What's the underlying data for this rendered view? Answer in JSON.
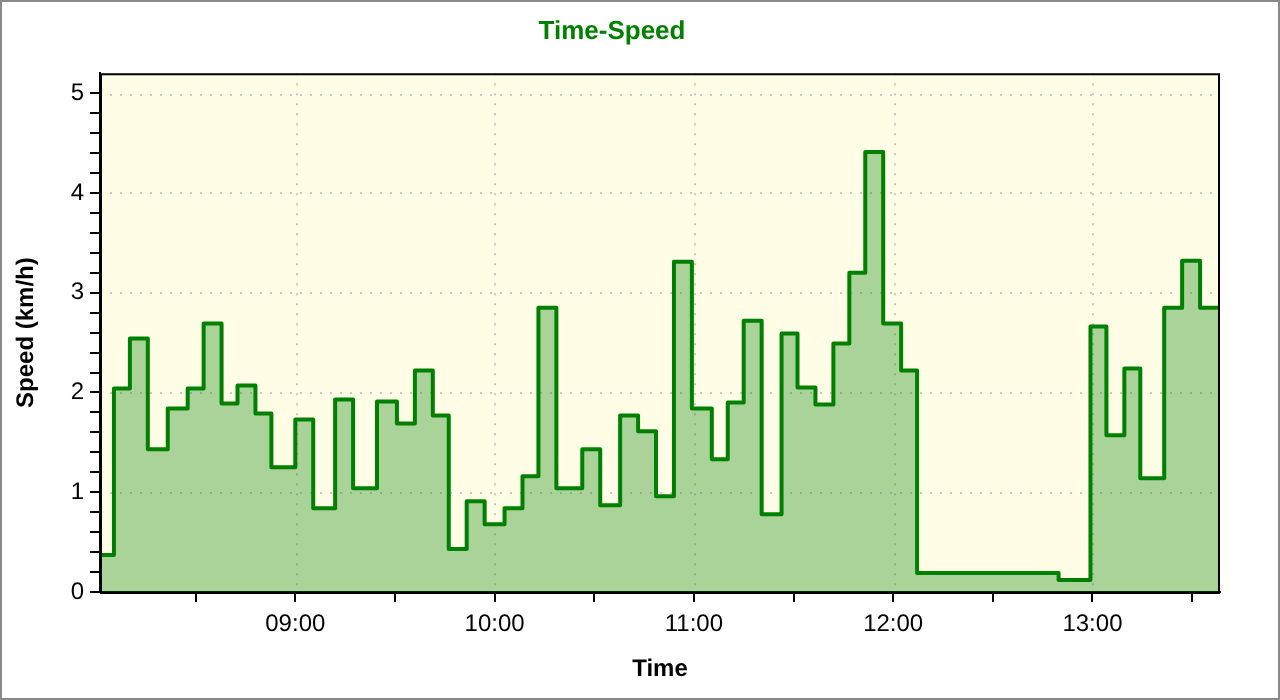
{
  "chart_data": {
    "type": "area",
    "title": "Time-Speed",
    "xlabel": "Time",
    "ylabel": "Speed (km/h)",
    "x": [
      8.02,
      8.09,
      8.09,
      8.17,
      8.17,
      8.26,
      8.26,
      8.36,
      8.36,
      8.46,
      8.46,
      8.54,
      8.54,
      8.63,
      8.63,
      8.71,
      8.71,
      8.8,
      8.8,
      8.88,
      8.88,
      9.0,
      9.0,
      9.09,
      9.09,
      9.2,
      9.2,
      9.29,
      9.29,
      9.41,
      9.41,
      9.51,
      9.51,
      9.6,
      9.6,
      9.69,
      9.69,
      9.77,
      9.77,
      9.86,
      9.86,
      9.95,
      9.95,
      10.05,
      10.05,
      10.14,
      10.14,
      10.22,
      10.22,
      10.31,
      10.31,
      10.44,
      10.44,
      10.53,
      10.53,
      10.63,
      10.63,
      10.72,
      10.72,
      10.81,
      10.81,
      10.9,
      10.9,
      10.99,
      10.99,
      11.09,
      11.09,
      11.17,
      11.17,
      11.25,
      11.25,
      11.34,
      11.34,
      11.44,
      11.44,
      11.52,
      11.52,
      11.61,
      11.61,
      11.7,
      11.7,
      11.78,
      11.78,
      11.86,
      11.86,
      11.95,
      11.95,
      12.04,
      12.04,
      12.12,
      12.12,
      12.83,
      12.83,
      12.99,
      12.99,
      13.07,
      13.07,
      13.16,
      13.16,
      13.24,
      13.24,
      13.36,
      13.36,
      13.45,
      13.45,
      13.54,
      13.54,
      13.64
    ],
    "series": [
      {
        "color": "#008000",
        "values": [
          0.37,
          0.37,
          2.04,
          2.04,
          2.54,
          2.54,
          1.43,
          1.43,
          1.84,
          1.84,
          2.04,
          2.04,
          2.69,
          2.69,
          1.89,
          1.89,
          2.07,
          2.07,
          1.79,
          1.79,
          1.25,
          1.25,
          1.73,
          1.73,
          0.84,
          0.84,
          1.93,
          1.93,
          1.04,
          1.04,
          1.91,
          1.91,
          1.69,
          1.69,
          2.22,
          2.22,
          1.77,
          1.77,
          0.43,
          0.43,
          0.91,
          0.91,
          0.68,
          0.68,
          0.84,
          0.84,
          1.16,
          1.16,
          2.85,
          2.85,
          1.04,
          1.04,
          1.43,
          1.43,
          0.87,
          0.87,
          1.77,
          1.77,
          1.61,
          1.61,
          0.96,
          0.96,
          3.31,
          3.31,
          1.84,
          1.84,
          1.33,
          1.33,
          1.9,
          1.9,
          2.72,
          2.72,
          0.78,
          0.78,
          2.59,
          2.59,
          2.05,
          2.05,
          1.88,
          1.88,
          2.49,
          2.49,
          3.2,
          3.2,
          4.41,
          4.41,
          2.69,
          2.69,
          2.22,
          2.22,
          0.19,
          0.19,
          0.12,
          0.12,
          2.66,
          2.66,
          1.57,
          1.57,
          2.24,
          2.24,
          1.14,
          1.14,
          2.85,
          2.85,
          3.32,
          3.32,
          2.85,
          2.85
        ]
      }
    ],
    "xlim": [
      8.02,
      13.64
    ],
    "xticks": [
      {
        "value": 8.5,
        "label": null
      },
      {
        "value": 9,
        "label": "09:00"
      },
      {
        "value": 9.5,
        "label": null
      },
      {
        "value": 10,
        "label": "10:00"
      },
      {
        "value": 10.5,
        "label": null
      },
      {
        "value": 11,
        "label": "11:00"
      },
      {
        "value": 11.5,
        "label": null
      },
      {
        "value": 12,
        "label": "12:00"
      },
      {
        "value": 12.5,
        "label": null
      },
      {
        "value": 13,
        "label": "13:00"
      },
      {
        "value": 13.5,
        "label": null
      }
    ],
    "ylim": [
      0,
      5.2
    ],
    "yticks": [
      0,
      {
        "value": 0.2,
        "label": null
      },
      {
        "value": 0.4,
        "label": null
      },
      {
        "value": 0.6,
        "label": null
      },
      {
        "value": 0.8,
        "label": null
      },
      1,
      {
        "value": 1.2,
        "label": null
      },
      {
        "value": 1.4,
        "label": null
      },
      {
        "value": 1.6,
        "label": null
      },
      {
        "value": 1.8,
        "label": null
      },
      2,
      {
        "value": 2.2,
        "label": null
      },
      {
        "value": 2.4,
        "label": null
      },
      {
        "value": 2.6,
        "label": null
      },
      {
        "value": 2.8,
        "label": null
      },
      3,
      {
        "value": 3.2,
        "label": null
      },
      {
        "value": 3.4,
        "label": null
      },
      {
        "value": 3.6,
        "label": null
      },
      {
        "value": 3.8,
        "label": null
      },
      4,
      {
        "value": 4.2,
        "label": null
      },
      {
        "value": 4.4,
        "label": null
      },
      {
        "value": 4.6,
        "label": null
      },
      {
        "value": 4.8,
        "label": null
      },
      5
    ],
    "grid": true,
    "legend": false,
    "marker": "none",
    "line_style": "solid"
  }
}
